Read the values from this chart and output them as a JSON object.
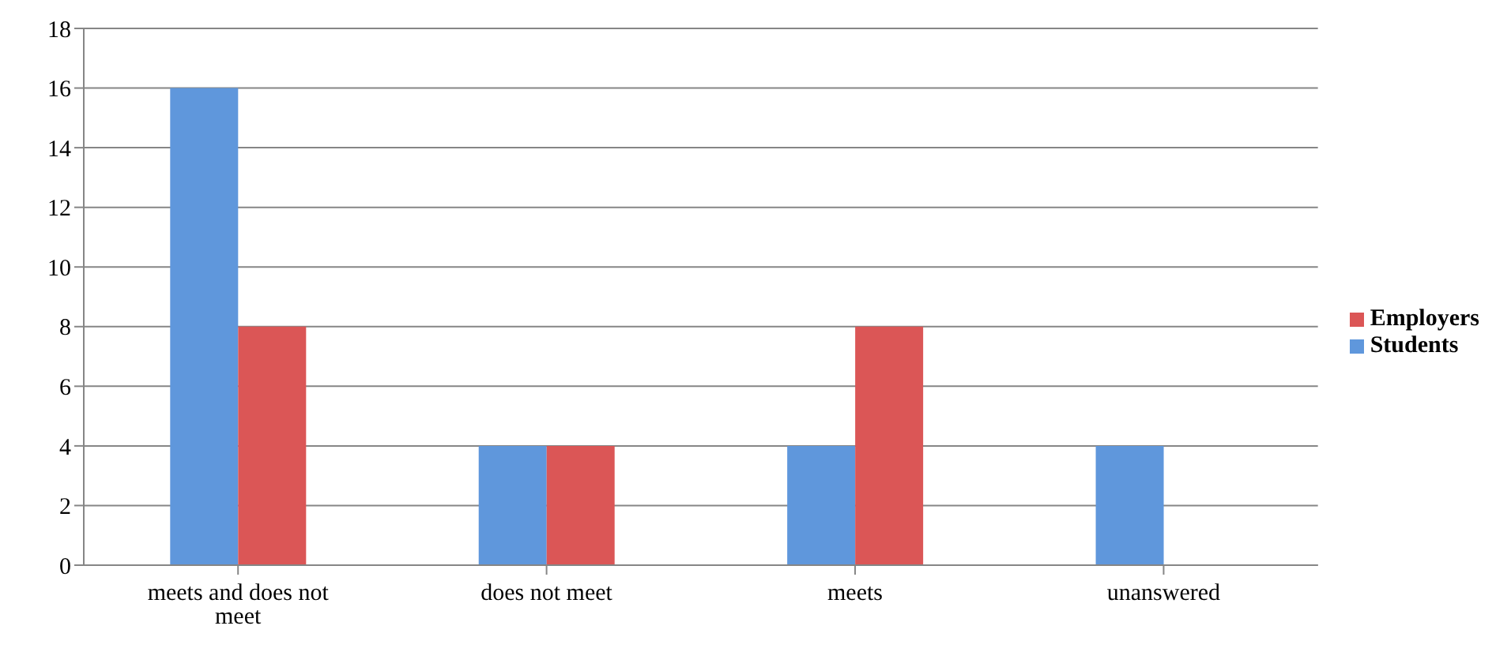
{
  "chart_data": {
    "type": "bar",
    "categories": [
      "meets and does not meet",
      "does not meet",
      "meets",
      "unanswered"
    ],
    "series": [
      {
        "name": "Students",
        "color": "#5f97dc",
        "values": [
          16,
          4,
          4,
          4
        ]
      },
      {
        "name": "Employers",
        "color": "#db5656",
        "values": [
          8,
          4,
          8,
          0
        ]
      }
    ],
    "ylim": [
      0,
      18
    ],
    "yticks": [
      0,
      2,
      4,
      6,
      8,
      10,
      12,
      14,
      16,
      18
    ],
    "grid": "y",
    "legend": "right"
  }
}
